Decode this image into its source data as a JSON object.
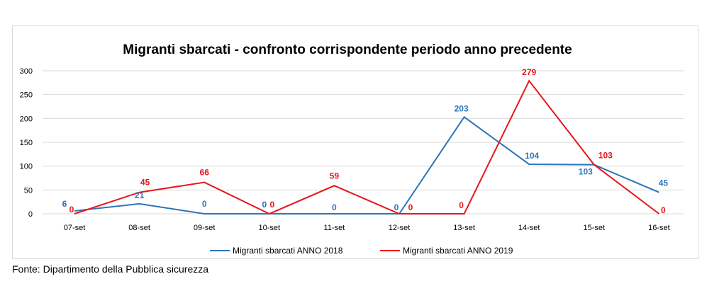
{
  "chart_data": {
    "type": "line",
    "title": "Migranti sbarcati - confronto corrispondente periodo anno precedente",
    "categories": [
      "07-set",
      "08-set",
      "09-set",
      "10-set",
      "11-set",
      "12-set",
      "13-set",
      "14-set",
      "15-set",
      "16-set"
    ],
    "ylim": [
      0,
      300
    ],
    "yticks": [
      0,
      50,
      100,
      150,
      200,
      250,
      300
    ],
    "grid": true,
    "legend_position": "bottom",
    "series": [
      {
        "name": "Migranti sbarcati ANNO 2018",
        "color": "#2e75b6",
        "values": [
          6,
          21,
          0,
          0,
          0,
          0,
          203,
          104,
          103,
          45
        ]
      },
      {
        "name": "Migranti sbarcati ANNO 2019",
        "color": "#e8161b",
        "values": [
          0,
          45,
          66,
          0,
          59,
          0,
          0,
          279,
          103,
          0
        ]
      }
    ]
  },
  "source": "Fonte: Dipartimento della Pubblica sicurezza"
}
